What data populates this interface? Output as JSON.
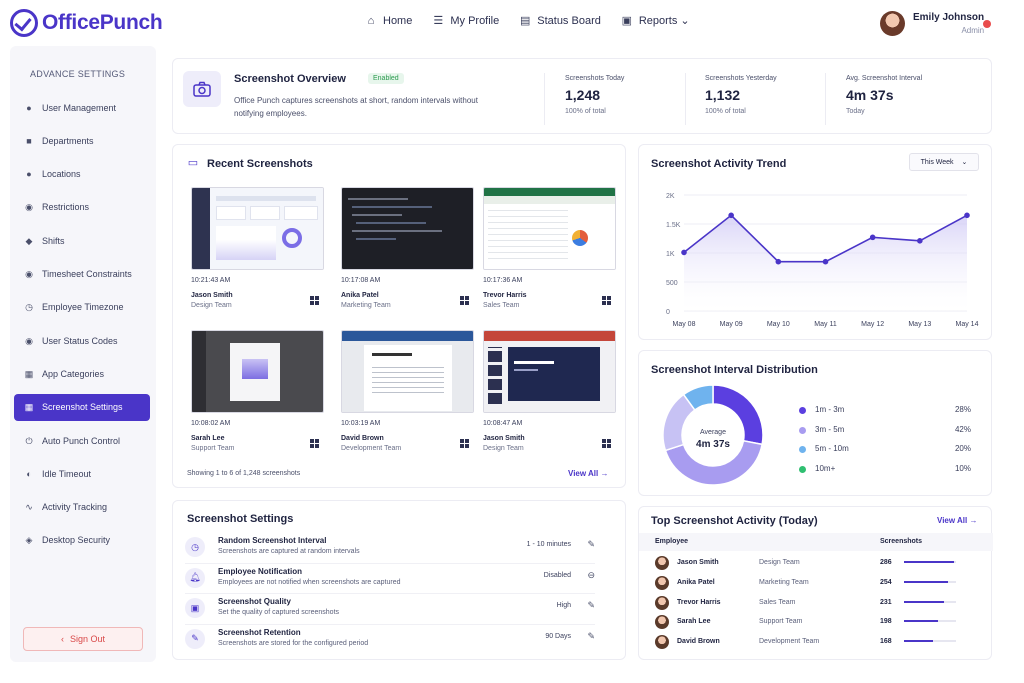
{
  "brand": {
    "name": "OfficePunch"
  },
  "nav": [
    {
      "label": "Home",
      "icon": "home-icon",
      "glyph": "⌂"
    },
    {
      "label": "My Profile",
      "icon": "menu-icon",
      "glyph": "☰"
    },
    {
      "label": "Status Board",
      "icon": "calendar-icon",
      "glyph": "▤"
    },
    {
      "label": "Reports ⌄",
      "icon": "report-icon",
      "glyph": "▣"
    }
  ],
  "user": {
    "name": "Emily Johnson",
    "role": "Admin"
  },
  "sidebar": {
    "title": "ADVANCE SETTINGS",
    "items": [
      {
        "label": "User Management",
        "icon": "users-icon",
        "glyph": "●"
      },
      {
        "label": "Departments",
        "icon": "building-icon",
        "glyph": "■"
      },
      {
        "label": "Locations",
        "icon": "pin-icon",
        "glyph": "●"
      },
      {
        "label": "Restrictions",
        "icon": "check-circle-icon",
        "glyph": "◉"
      },
      {
        "label": "Shifts",
        "icon": "shield-icon",
        "glyph": "◆"
      },
      {
        "label": "Timesheet Constraints",
        "icon": "check-circle-icon",
        "glyph": "◉"
      },
      {
        "label": "Employee Timezone",
        "icon": "clock-icon",
        "glyph": "◷"
      },
      {
        "label": "User Status Codes",
        "icon": "check-circle-icon",
        "glyph": "◉"
      },
      {
        "label": "App Categories",
        "icon": "grid-icon",
        "glyph": "▦"
      },
      {
        "label": "Screenshot Settings",
        "icon": "grid-icon",
        "glyph": "▦"
      },
      {
        "label": "Auto Punch Control",
        "icon": "power-icon",
        "glyph": "⏻"
      },
      {
        "label": "Idle Timeout",
        "icon": "half-circle-icon",
        "glyph": "◐"
      },
      {
        "label": "Activity Tracking",
        "icon": "trend-icon",
        "glyph": "∿"
      },
      {
        "label": "Desktop Security",
        "icon": "shield-icon",
        "glyph": "◈"
      }
    ],
    "active_index": 9,
    "signout": "Sign Out"
  },
  "overview": {
    "title": "Screenshot Overview",
    "badge": "Enabled",
    "desc": "Office Punch captures screenshots at short, random intervals without notifying employees.",
    "stats": [
      {
        "label": "Screenshots Today",
        "value": "1,248",
        "sub": "100% of total"
      },
      {
        "label": "Screenshots Yesterday",
        "value": "1,132",
        "sub": "100% of total"
      },
      {
        "label": "Avg. Screenshot Interval",
        "value": "4m 37s",
        "sub": "Today"
      }
    ]
  },
  "recent": {
    "title": "Recent Screenshots",
    "footer": "Showing 1 to 6 of 1,248 screenshots",
    "view_all": "View All",
    "shots": [
      {
        "time": "10:21:43 AM",
        "name": "Jason Smith",
        "team": "Design Team",
        "theme": "light-dashboard"
      },
      {
        "time": "10:17:08 AM",
        "name": "Anika Patel",
        "team": "Marketing Team",
        "theme": "dark-code"
      },
      {
        "time": "10:17:36 AM",
        "name": "Trevor Harris",
        "team": "Sales Team",
        "theme": "spreadsheet"
      },
      {
        "time": "10:08:02 AM",
        "name": "Sarah Lee",
        "team": "Support Team",
        "theme": "dark-design"
      },
      {
        "time": "10:03:19 AM",
        "name": "David Brown",
        "team": "Development Team",
        "theme": "document"
      },
      {
        "time": "10:08:47 AM",
        "name": "Jason Smith",
        "team": "Design Team",
        "theme": "presentation"
      }
    ]
  },
  "trend": {
    "title": "Screenshot Activity Trend",
    "range": "This Week"
  },
  "chart_data": {
    "type": "area",
    "categories": [
      "May 08",
      "May 09",
      "May 10",
      "May 11",
      "May 12",
      "May 13",
      "May 14"
    ],
    "values": [
      1010,
      1650,
      850,
      850,
      1270,
      1210,
      1650
    ],
    "yticks": [
      "2K",
      "1.5K",
      "1K",
      "500",
      "0"
    ],
    "ylim": [
      0,
      2000
    ],
    "color": "#4a35c8"
  },
  "distribution": {
    "title": "Screenshot Interval Distribution",
    "center_label": "Average",
    "center_value": "4m 37s",
    "slices": [
      {
        "label": "1m - 3m",
        "pct_text": "28%",
        "value": 28,
        "color": "#5b3fe0"
      },
      {
        "label": "3m - 5m",
        "pct_text": "42%",
        "value": 42,
        "color": "#a89cf0"
      },
      {
        "label": "5m - 10m",
        "pct_text": "20%",
        "value": 20,
        "color": "#c7c2f4"
      },
      {
        "label": "10m+",
        "pct_text": "10%",
        "value": 10,
        "color": "#6fb3ee"
      }
    ],
    "legend_dot_colors": [
      "#5b3fe0",
      "#a89cf0",
      "#6fb3ee",
      "#2fbf71"
    ]
  },
  "settings": {
    "title": "Screenshot Settings",
    "rows": [
      {
        "title": "Random Screenshot Interval",
        "desc": "Screenshots are captured at random intervals",
        "value": "1 - 10 minutes",
        "icon": "clock-icon",
        "glyph": "◷",
        "action": "✎",
        "action_icon": "edit-icon"
      },
      {
        "title": "Employee Notification",
        "desc": "Employees are not notified when screenshots are captured",
        "value": "Disabled",
        "icon": "bell-icon",
        "glyph": "🔔︎",
        "action": "⊖",
        "action_icon": "minus-circle-icon"
      },
      {
        "title": "Screenshot Quality",
        "desc": "Set the quality of captured screenshots",
        "value": "High",
        "icon": "image-icon",
        "glyph": "▣",
        "action": "✎",
        "action_icon": "edit-icon"
      },
      {
        "title": "Screenshot Retention",
        "desc": "Screenshots are stored for the configured period",
        "value": "90 Days",
        "icon": "pencil-icon",
        "glyph": "✎",
        "action": "✎",
        "action_icon": "edit-icon"
      }
    ]
  },
  "top": {
    "title": "Top Screenshot Activity (Today)",
    "view_all": "View All",
    "col_employee": "Employee",
    "col_screens": "Screenshots",
    "rows": [
      {
        "name": "Jason Smith",
        "team": "Design Team",
        "count": "286",
        "value": 286
      },
      {
        "name": "Anika Patel",
        "team": "Marketing Team",
        "count": "254",
        "value": 254
      },
      {
        "name": "Trevor Harris",
        "team": "Sales Team",
        "count": "231",
        "value": 231
      },
      {
        "name": "Sarah Lee",
        "team": "Support Team",
        "count": "198",
        "value": 198
      },
      {
        "name": "David Brown",
        "team": "Development Team",
        "count": "168",
        "value": 168
      }
    ],
    "max": 300
  }
}
